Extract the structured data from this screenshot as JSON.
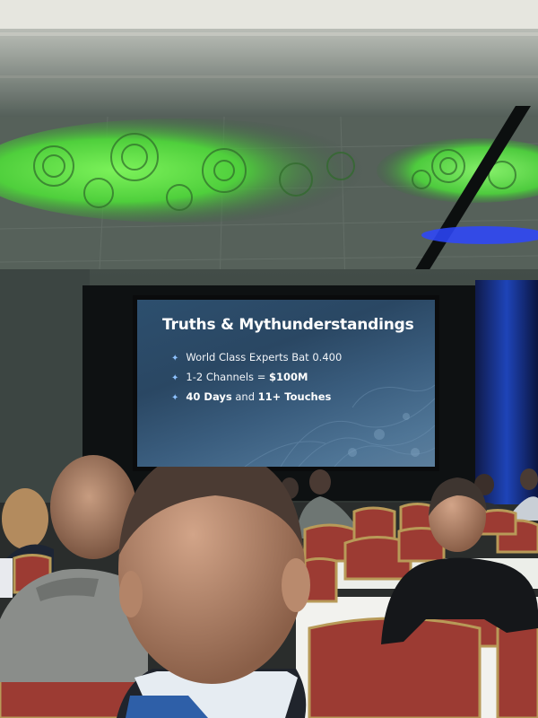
{
  "slide": {
    "title": "Truths & Mythunderstandings",
    "bullets": [
      {
        "text": "World Class Experts Bat 0.400",
        "bold_suffix": ""
      },
      {
        "text": "1-2 Channels = ",
        "bold_suffix": "$100M"
      },
      {
        "prefix_bold": "40 Days",
        "text": " and ",
        "bold_suffix": "11+ Touches"
      }
    ]
  },
  "colors": {
    "ceiling_projection": "#5ee04a",
    "stage_backdrop": "#0f1a3a",
    "chair_red": "#9c3b33",
    "chair_gold": "#b89a58",
    "table_linen": "#f2f2ee",
    "bullet_star": "#8fc3ff"
  },
  "icons": {
    "bullet": "star-icon"
  }
}
